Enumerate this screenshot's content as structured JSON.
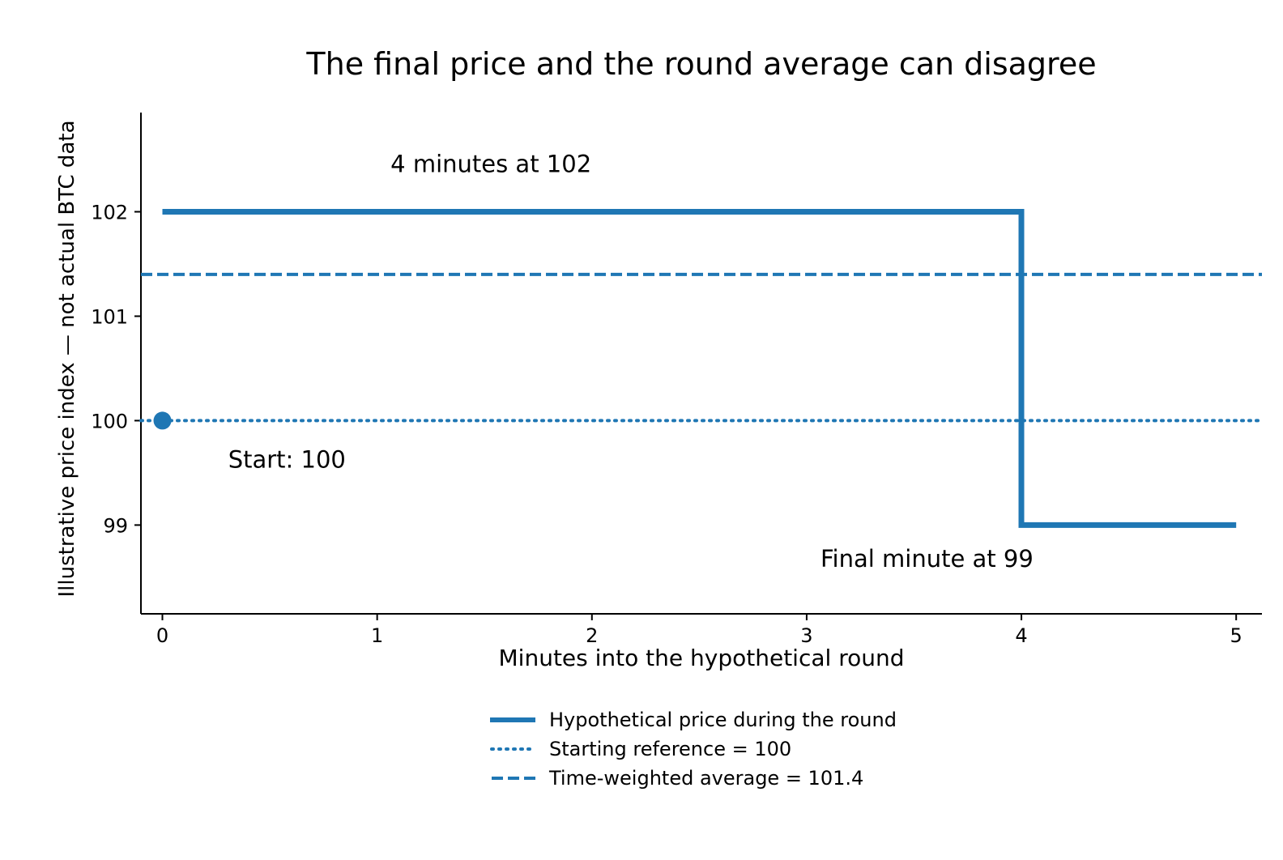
{
  "chart_data": {
    "type": "line",
    "title": "The final price and the round average can disagree",
    "xlabel": "Minutes into the hypothetical round",
    "ylabel": "Illustrative price index — not actual BTC data",
    "xlim": [
      -0.1,
      5.12
    ],
    "ylim": [
      98.15,
      102.95
    ],
    "xticks": [
      "0",
      "1",
      "2",
      "3",
      "4",
      "5"
    ],
    "yticks": [
      "99",
      "100",
      "101",
      "102"
    ],
    "grid": false,
    "legend_position": "bottom-center",
    "color": "#1f77b4",
    "series": [
      {
        "name": "Hypothetical price during the round",
        "style": "solid-step",
        "x": [
          0,
          4,
          4,
          5
        ],
        "y": [
          102,
          102,
          99,
          99
        ]
      },
      {
        "name": "Starting reference = 100",
        "style": "dotted-hline",
        "y": 100
      },
      {
        "name": "Time-weighted average = 101.4",
        "style": "dashed-hline",
        "y": 101.4
      }
    ],
    "start_point": {
      "x": 0,
      "y": 100
    },
    "annotations": [
      {
        "text": "4 minutes at 102",
        "x": 1.53,
        "y": 102.38
      },
      {
        "text": "Start: 100",
        "x": 0.58,
        "y": 99.55
      },
      {
        "text": "Final minute at 99",
        "x": 3.56,
        "y": 98.6
      }
    ]
  }
}
